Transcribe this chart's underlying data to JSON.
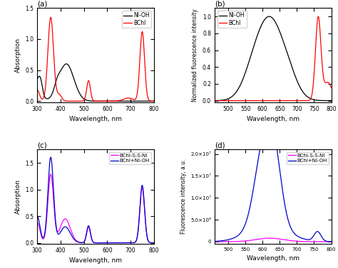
{
  "panel_a": {
    "title": "(a)",
    "xlabel": "Wavelength, nm",
    "ylabel": "Absorption",
    "xlim": [
      300,
      800
    ],
    "ylim": [
      -0.02,
      1.5
    ],
    "yticks": [
      0.0,
      0.5,
      1.0,
      1.5
    ],
    "legend": [
      "NI-OH",
      "BChl"
    ],
    "colors": [
      "black",
      "red"
    ]
  },
  "panel_b": {
    "title": "(b)",
    "xlabel": "Wavelength, nm",
    "ylabel": "Normalized fluorescence intensity",
    "xlim": [
      460,
      800
    ],
    "ylim": [
      -0.02,
      1.1
    ],
    "yticks": [
      0.0,
      0.2,
      0.4,
      0.6,
      0.8,
      1.0
    ],
    "legend": [
      "NI-OH",
      "BChl"
    ],
    "colors": [
      "black",
      "red"
    ]
  },
  "panel_c": {
    "title": "(c)",
    "xlabel": "Wavelength, nm",
    "ylabel": "Absorption",
    "xlim": [
      300,
      800
    ],
    "ylim": [
      -0.02,
      1.75
    ],
    "yticks": [
      0.0,
      0.5,
      1.0,
      1.5
    ],
    "legend": [
      "BChl-S-S-NI",
      "BChl+NI-OH"
    ],
    "colors": [
      "#ff00ff",
      "#0000cc"
    ]
  },
  "panel_d": {
    "title": "(d)",
    "xlabel": "Wavelength, nm",
    "ylabel": "Fluorescence intensity, a.u.",
    "xlim": [
      460,
      800
    ],
    "ylim": [
      -500000.0,
      21000000.0
    ],
    "legend": [
      "BChl-S-S-NI",
      "BChl+NI-OH"
    ],
    "colors": [
      "#ff00ff",
      "#0000cc"
    ],
    "ytick_vals": [
      0,
      5000000.0,
      10000000.0,
      15000000.0,
      20000000.0
    ],
    "ytick_labels": [
      "0",
      "5.0×10⁶",
      "1.0×10⁷",
      "1.5×10⁷",
      "2.0×10⁷"
    ]
  }
}
